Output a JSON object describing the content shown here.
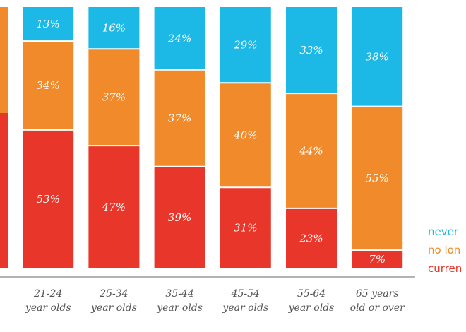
{
  "chart_data": {
    "type": "bar",
    "stacked": true,
    "categories": [
      [
        "",
        "s"
      ],
      [
        "21-24",
        "year olds"
      ],
      [
        "25-34",
        "year olds"
      ],
      [
        "35-44",
        "year olds"
      ],
      [
        "45-54",
        "year olds"
      ],
      [
        "55-64",
        "year olds"
      ],
      [
        "65 years",
        "old or over"
      ]
    ],
    "series": [
      {
        "name": "curren",
        "color": "#e8372a",
        "values": [
          null,
          53,
          47,
          39,
          31,
          23,
          7
        ]
      },
      {
        "name": "no lon",
        "color": "#f18a2b",
        "values": [
          null,
          34,
          37,
          37,
          40,
          44,
          55
        ]
      },
      {
        "name": "never",
        "color": "#1cb8e6",
        "values": [
          null,
          13,
          16,
          24,
          29,
          33,
          38
        ]
      }
    ],
    "value_suffix": "%",
    "ylim": [
      0,
      100
    ],
    "grid": false,
    "legend": "right"
  }
}
